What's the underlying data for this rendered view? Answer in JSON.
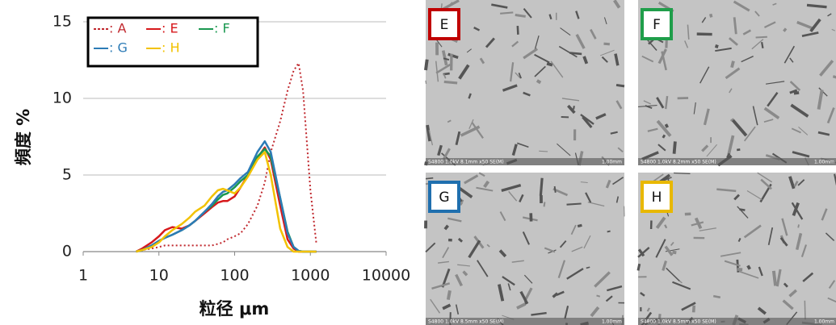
{
  "chart_data": {
    "type": "line",
    "x_label": "粒径 μm",
    "y_label": "頻度 %",
    "log_x": true,
    "xlim": [
      1,
      10000
    ],
    "xticks": [
      1,
      10,
      100,
      1000,
      10000
    ],
    "ylim": [
      0,
      15
    ],
    "yticks": [
      0,
      5,
      10,
      15
    ],
    "grid": true,
    "legend": "upper left",
    "x": [
      5,
      6,
      8,
      10,
      12,
      15,
      20,
      25,
      30,
      40,
      50,
      60,
      70,
      80,
      100,
      120,
      150,
      200,
      250,
      300,
      400,
      500,
      600,
      700,
      800,
      1000,
      1200
    ],
    "series": [
      {
        "name": ": A",
        "color": "#c0272d",
        "dashed": true,
        "values": [
          0,
          0.1,
          0.2,
          0.3,
          0.4,
          0.4,
          0.4,
          0.4,
          0.4,
          0.4,
          0.4,
          0.5,
          0.6,
          0.8,
          1.0,
          1.2,
          1.8,
          3.0,
          4.5,
          6.5,
          8.5,
          10.5,
          11.8,
          12.3,
          10.5,
          4,
          0.5
        ]
      },
      {
        "name": ": E",
        "color": "#d7191c",
        "values": [
          0,
          0.2,
          0.6,
          1.0,
          1.4,
          1.6,
          1.5,
          1.7,
          2.0,
          2.5,
          2.9,
          3.2,
          3.3,
          3.3,
          3.6,
          4.2,
          5.0,
          6.1,
          6.8,
          6.0,
          3.0,
          0.8,
          0.2,
          0,
          0,
          0,
          0
        ]
      },
      {
        "name": ": F",
        "color": "#1a9850",
        "values": [
          0,
          0.1,
          0.4,
          0.7,
          0.9,
          1.1,
          1.4,
          1.7,
          2.0,
          2.6,
          3.0,
          3.4,
          3.7,
          3.8,
          4.2,
          4.6,
          5.0,
          6.2,
          6.7,
          6.2,
          3.5,
          1.3,
          0.3,
          0.05,
          0,
          0,
          0
        ]
      },
      {
        "name": ": G",
        "color": "#2c7bb6",
        "values": [
          0,
          0.1,
          0.4,
          0.7,
          0.9,
          1.1,
          1.4,
          1.7,
          2.0,
          2.6,
          3.1,
          3.6,
          3.9,
          4.0,
          4.4,
          4.8,
          5.2,
          6.5,
          7.2,
          6.5,
          3.5,
          1.2,
          0.3,
          0.05,
          0,
          0,
          0
        ]
      },
      {
        "name": ": H",
        "color": "#f2c200",
        "values": [
          0,
          0.1,
          0.3,
          0.6,
          1.0,
          1.4,
          1.8,
          2.2,
          2.6,
          3.0,
          3.6,
          4.0,
          4.1,
          4.0,
          3.8,
          4.2,
          4.9,
          6.0,
          6.5,
          5.0,
          1.5,
          0.3,
          0,
          0,
          0,
          0,
          0
        ]
      }
    ]
  },
  "panels": [
    {
      "label": "E",
      "color": "#c00000",
      "caption": "S4800 1.0kV 8.1mm x50 SE(M)",
      "scale": "1.00mm"
    },
    {
      "label": "F",
      "color": "#1f9e4a",
      "caption": "S4800 1.0kV 8.2mm x50 SE(M)",
      "scale": "1.00mm"
    },
    {
      "label": "G",
      "color": "#1f6fae",
      "caption": "S4800 1.0kV 8.5mm x50 SE(M)",
      "scale": "1.00mm"
    },
    {
      "label": "H",
      "color": "#e8b800",
      "caption": "S4800 1.0kV 8.5mm x50 SE(M)",
      "scale": "1.00mm"
    }
  ]
}
